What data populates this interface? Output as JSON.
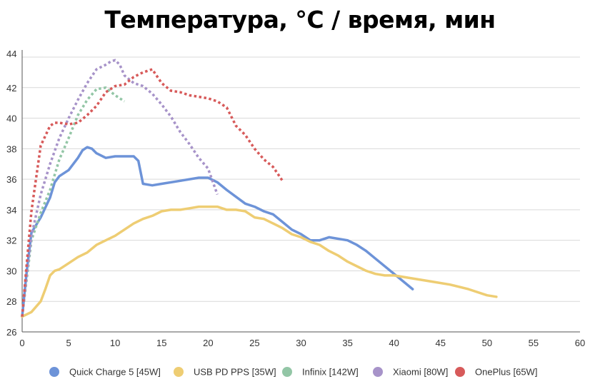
{
  "chart_data": {
    "type": "line",
    "title": "Температура, °C / время, мин",
    "xlabel": "",
    "ylabel": "",
    "xlim": [
      0,
      60
    ],
    "ylim": [
      26,
      44
    ],
    "xticks": [
      "0",
      "5",
      "10",
      "15",
      "20",
      "25",
      "30",
      "35",
      "40",
      "45",
      "50",
      "55",
      "60"
    ],
    "yticks": [
      "26",
      "28",
      "30",
      "32",
      "34",
      "36",
      "38",
      "40",
      "42",
      "44"
    ],
    "grid": true,
    "legend_position": "bottom",
    "series": [
      {
        "name": "Quick Charge 5 [45W]",
        "color": "#6d93d8",
        "style": "solid",
        "x": [
          0,
          0.5,
          1,
          1.5,
          2,
          3,
          3.5,
          4,
          5,
          6,
          6.5,
          7,
          7.5,
          8,
          9,
          10,
          11,
          12,
          12.5,
          13,
          14,
          15,
          17,
          19,
          20,
          21,
          22,
          24,
          25,
          26,
          27,
          28,
          29,
          30,
          31,
          32,
          33,
          35,
          36,
          37,
          38,
          40,
          41,
          42
        ],
        "y": [
          27,
          30,
          32.5,
          33,
          33.5,
          34.8,
          35.8,
          36.2,
          36.6,
          37.4,
          37.9,
          38.1,
          38.0,
          37.7,
          37.4,
          37.5,
          37.5,
          37.5,
          37.2,
          35.7,
          35.6,
          35.7,
          35.9,
          36.1,
          36.1,
          35.8,
          35.3,
          34.4,
          34.2,
          33.9,
          33.7,
          33.2,
          32.7,
          32.4,
          32.0,
          32.0,
          32.2,
          32.0,
          31.7,
          31.3,
          30.8,
          29.8,
          29.3,
          28.8
        ]
      },
      {
        "name": "USB PD PPS [35W]",
        "color": "#eecd73",
        "style": "solid",
        "x": [
          0,
          1,
          2,
          2.5,
          3,
          3.5,
          4,
          5,
          6,
          7,
          8,
          9,
          10,
          11,
          12,
          13,
          14,
          15,
          16,
          17,
          18,
          19,
          20,
          21,
          22,
          23,
          24,
          25,
          26,
          27,
          28,
          29,
          30,
          31,
          32,
          33,
          34,
          35,
          36,
          37,
          38,
          39,
          40,
          41,
          42,
          44,
          46,
          48,
          50,
          51
        ],
        "y": [
          27,
          27.3,
          28.0,
          28.8,
          29.7,
          30.0,
          30.1,
          30.5,
          30.9,
          31.2,
          31.7,
          32.0,
          32.3,
          32.7,
          33.1,
          33.4,
          33.6,
          33.9,
          34.0,
          34.0,
          34.1,
          34.2,
          34.2,
          34.2,
          34.0,
          34.0,
          33.9,
          33.5,
          33.4,
          33.1,
          32.8,
          32.4,
          32.2,
          31.9,
          31.7,
          31.3,
          31.0,
          30.6,
          30.3,
          30.0,
          29.8,
          29.7,
          29.7,
          29.6,
          29.5,
          29.3,
          29.1,
          28.8,
          28.4,
          28.3
        ]
      },
      {
        "name": "Infinix [142W]",
        "color": "#93c6a6",
        "style": "dotted",
        "x": [
          0,
          0.5,
          1,
          2,
          3,
          4,
          5,
          6,
          7,
          8,
          9,
          10,
          11
        ],
        "y": [
          27,
          29.5,
          32,
          33.8,
          35.3,
          37.3,
          38.7,
          40.2,
          41.2,
          41.9,
          42.0,
          41.5,
          41.1
        ]
      },
      {
        "name": "Xiaomi [80W]",
        "color": "#a793c9",
        "style": "dotted",
        "x": [
          0,
          0.5,
          1,
          2,
          3,
          4,
          5,
          6,
          7,
          8,
          9,
          9.5,
          10,
          10.5,
          11,
          12,
          13,
          14,
          15,
          16,
          17,
          18,
          19,
          20,
          21
        ],
        "y": [
          27,
          29.8,
          32.3,
          35.0,
          37.0,
          38.7,
          40.0,
          41.2,
          42.3,
          43.2,
          43.5,
          43.7,
          43.8,
          43.5,
          42.8,
          42.3,
          42.1,
          41.6,
          40.9,
          40.1,
          39.1,
          38.3,
          37.4,
          36.7,
          35.0
        ]
      },
      {
        "name": "OnePlus [65W]",
        "color": "#d75a5a",
        "style": "dotted",
        "x": [
          0,
          0.5,
          1,
          2,
          3,
          3.5,
          4,
          5,
          6,
          7,
          8,
          9,
          10,
          11,
          12,
          13,
          14,
          15,
          16,
          17,
          18,
          19,
          20,
          21,
          22,
          23,
          24,
          25,
          26,
          27,
          28
        ],
        "y": [
          27,
          30.5,
          33.9,
          38.2,
          39.5,
          39.7,
          39.7,
          39.6,
          39.7,
          40.2,
          40.8,
          41.7,
          42.1,
          42.2,
          42.7,
          43.0,
          43.2,
          42.3,
          41.8,
          41.7,
          41.5,
          41.4,
          41.3,
          41.1,
          40.7,
          39.5,
          38.9,
          38.0,
          37.3,
          36.8,
          35.9
        ]
      }
    ]
  }
}
